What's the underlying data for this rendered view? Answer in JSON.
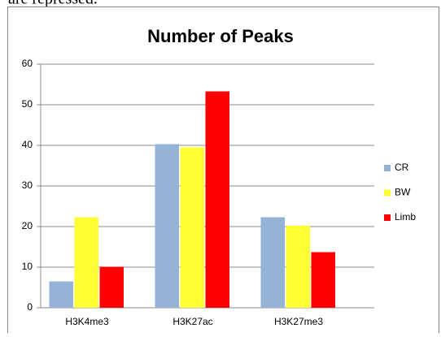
{
  "annotations": [
    "are repressed."
  ],
  "chart_data": {
    "type": "bar",
    "title": "Number of Peaks",
    "categories": [
      "H3K4me3",
      "H3K27ac",
      "H3K27me3"
    ],
    "series": [
      {
        "name": "CR",
        "color": "#95b3d7",
        "values": [
          6.5,
          40.3,
          22.3
        ]
      },
      {
        "name": "BW",
        "color": "#ffff33",
        "values": [
          22.3,
          39.5,
          20.2
        ]
      },
      {
        "name": "Limb",
        "color": "#ff0000",
        "values": [
          10.1,
          53.3,
          13.7
        ]
      }
    ],
    "ylim": [
      0,
      60
    ],
    "yticks": [
      0,
      10,
      20,
      30,
      40,
      50,
      60
    ],
    "grid": true,
    "legend": "right"
  }
}
